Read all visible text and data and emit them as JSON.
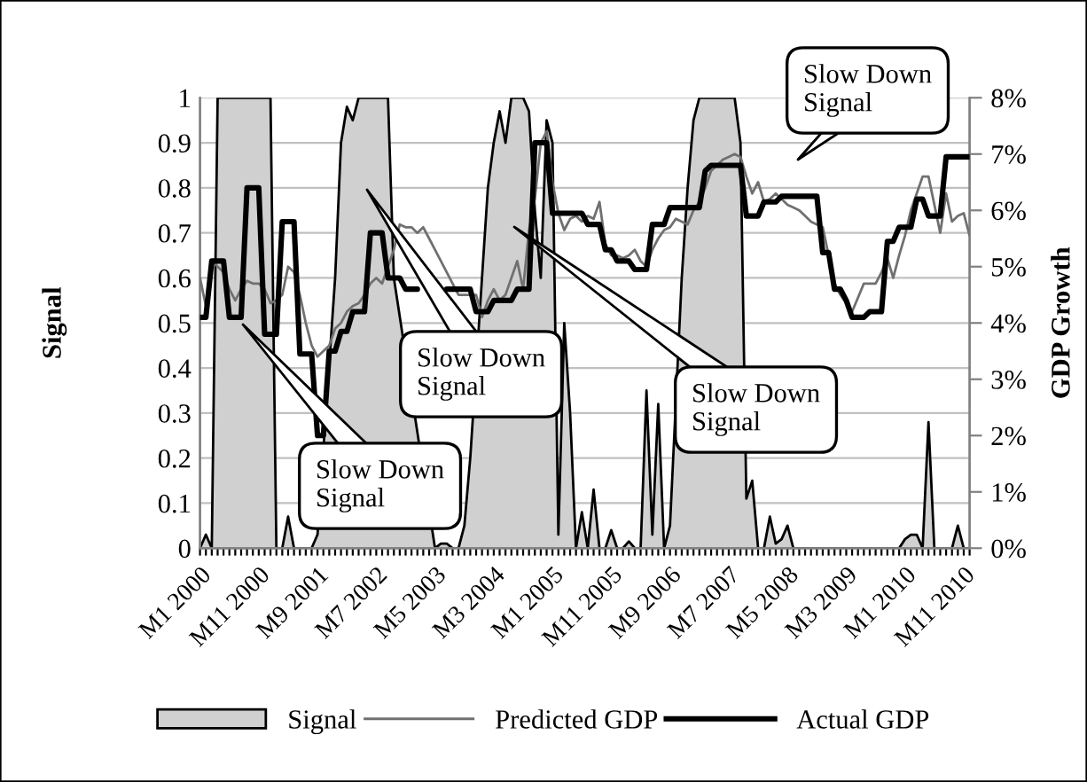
{
  "chart_data": {
    "type": "line",
    "ylabel": "Signal",
    "y2label": "GDP Growth",
    "categories": [
      "M1 2000",
      null,
      null,
      null,
      null,
      null,
      null,
      null,
      null,
      null,
      "M11 2000",
      null,
      null,
      null,
      null,
      null,
      null,
      null,
      null,
      null,
      "M9 2001",
      null,
      null,
      null,
      null,
      null,
      null,
      null,
      null,
      null,
      "M7 2002",
      null,
      null,
      null,
      null,
      null,
      null,
      null,
      null,
      null,
      "M5 2003",
      null,
      null,
      null,
      null,
      null,
      null,
      null,
      null,
      null,
      "M3 2004",
      null,
      null,
      null,
      null,
      null,
      null,
      null,
      null,
      null,
      "M1 2005",
      null,
      null,
      null,
      null,
      null,
      null,
      null,
      null,
      null,
      "M11 2005",
      null,
      null,
      null,
      null,
      null,
      null,
      null,
      null,
      null,
      "M9 2006",
      null,
      null,
      null,
      null,
      null,
      null,
      null,
      null,
      null,
      "M7 2007",
      null,
      null,
      null,
      null,
      null,
      null,
      null,
      null,
      null,
      "M5 2008",
      null,
      null,
      null,
      null,
      null,
      null,
      null,
      null,
      null,
      "M3 2009",
      null,
      null,
      null,
      null,
      null,
      null,
      null,
      null,
      null,
      "M1 2010",
      null,
      null,
      null,
      null,
      null,
      null,
      null,
      null,
      null,
      "M11 2010",
      null
    ],
    "series": [
      {
        "name": "Signal",
        "type": "area",
        "color": "#d0d0d0",
        "values": [
          0,
          0.03,
          0,
          1,
          1,
          1,
          1,
          1,
          1,
          1,
          1,
          1,
          1,
          0,
          0,
          0.07,
          0,
          0,
          0,
          0,
          0.03,
          null,
          null,
          0.6,
          0.9,
          0.98,
          0.95,
          1,
          1,
          1,
          1,
          1,
          1,
          0.6,
          null,
          null,
          null,
          null,
          null,
          null,
          0,
          0.01,
          0.01,
          0,
          0,
          0.05,
          0.2,
          null,
          0.6,
          0.8,
          0.9,
          0.97,
          0.9,
          1,
          1,
          1,
          0.97,
          0.75,
          0.6,
          0.95,
          0.9,
          0.03,
          0.5,
          0.3,
          0,
          0.08,
          0,
          0.13,
          0,
          0,
          0.04,
          0,
          0,
          0.015,
          0,
          0,
          0.35,
          0.03,
          0.32,
          0,
          0.05,
          null,
          0.6,
          0.8,
          0.95,
          1,
          1,
          1,
          1,
          1,
          1,
          1,
          0.9,
          0.11,
          0.15,
          0,
          0,
          0.07,
          0.01,
          0.02,
          0.05,
          0,
          0,
          0,
          0,
          0,
          0,
          0,
          0,
          0,
          0,
          0,
          0,
          0,
          0,
          0,
          0,
          0,
          0,
          0,
          0.02,
          0.03,
          0.03,
          0,
          0.28,
          0,
          0,
          0,
          0,
          0.05,
          0,
          0
        ]
      },
      {
        "name": "Predicted GDP",
        "axis": "y2",
        "color": "#707070",
        "values": [
          4.8,
          4.3,
          5.1,
          5.0,
          4.9,
          4.6,
          4.4,
          4.6,
          4.75,
          4.7,
          4.7,
          4.6,
          4.35,
          4.4,
          4.5,
          5.0,
          4.9,
          4.5,
          4.0,
          3.6,
          3.4,
          3.5,
          3.6,
          3.9,
          4.0,
          4.2,
          4.3,
          4.35,
          4.5,
          4.7,
          4.8,
          4.7,
          5.0,
          5.3,
          5.75,
          5.7,
          5.7,
          5.6,
          5.7,
          5.5,
          5.3,
          5.1,
          4.9,
          4.7,
          4.5,
          4.5,
          4.5,
          4.5,
          4.1,
          4.4,
          4.6,
          4.4,
          4.5,
          4.8,
          5.1,
          4.6,
          5.65,
          6.2,
          7.2,
          7.4,
          6.5,
          5.95,
          5.65,
          5.85,
          5.9,
          5.8,
          5.9,
          5.85,
          6.15,
          5.4,
          5.2,
          5.2,
          5.15,
          5.2,
          5.3,
          5.1,
          5.0,
          5.3,
          5.5,
          5.65,
          5.7,
          5.85,
          5.8,
          5.75,
          6.0,
          6.15,
          6.4,
          6.7,
          6.8,
          6.9,
          6.95,
          7.0,
          6.95,
          6.6,
          6.3,
          6.5,
          6.15,
          6.2,
          6.3,
          6.2,
          6.1,
          6.05,
          6.0,
          5.9,
          5.8,
          5.75,
          5.7,
          5.2,
          4.7,
          4.5,
          4.35,
          4.2,
          4.45,
          4.7,
          4.7,
          4.7,
          4.9,
          5.15,
          4.8,
          5.2,
          5.55,
          6.0,
          6.3,
          6.6,
          6.6,
          6.1,
          5.6,
          6.3,
          5.8,
          5.9,
          5.95,
          5.55
        ]
      },
      {
        "name": "Actual GDP",
        "axis": "y2",
        "color": "#000000",
        "values": [
          4.1,
          4.1,
          5.1,
          5.1,
          5.1,
          4.1,
          4.1,
          4.1,
          6.4,
          6.4,
          6.4,
          3.8,
          3.8,
          3.8,
          5.8,
          5.8,
          5.8,
          3.45,
          3.45,
          3.45,
          2.0,
          2.0,
          3.5,
          3.5,
          3.85,
          3.85,
          4.2,
          4.2,
          4.2,
          5.6,
          5.6,
          5.6,
          4.8,
          4.8,
          4.8,
          4.6,
          4.6,
          4.6,
          null,
          null,
          null,
          null,
          4.6,
          4.6,
          4.6,
          4.6,
          4.6,
          4.2,
          4.2,
          4.2,
          4.4,
          4.4,
          4.4,
          4.4,
          4.6,
          4.6,
          4.6,
          7.2,
          7.2,
          7.2,
          5.95,
          5.95,
          5.95,
          5.95,
          5.95,
          5.95,
          5.75,
          5.75,
          5.75,
          5.3,
          5.3,
          5.1,
          5.1,
          5.1,
          4.95,
          4.95,
          4.95,
          5.75,
          5.75,
          5.75,
          6.05,
          6.05,
          6.05,
          6.05,
          6.05,
          6.05,
          6.7,
          6.8,
          6.8,
          6.8,
          6.8,
          6.8,
          6.8,
          5.9,
          5.9,
          5.9,
          6.15,
          6.15,
          6.15,
          6.25,
          6.25,
          6.25,
          6.25,
          6.25,
          6.25,
          6.25,
          5.25,
          5.25,
          4.6,
          4.6,
          4.4,
          4.1,
          4.1,
          4.1,
          4.2,
          4.2,
          4.2,
          5.45,
          5.45,
          5.7,
          5.7,
          5.7,
          6.2,
          6.2,
          5.9,
          5.9,
          5.9,
          6.95,
          6.95,
          6.95,
          6.95,
          6.95
        ]
      }
    ],
    "ylim": [
      0,
      1
    ],
    "yticks": [
      0,
      0.1,
      0.2,
      0.3,
      0.4,
      0.5,
      0.6,
      0.7,
      0.8,
      0.9,
      1
    ],
    "y2lim": [
      0,
      8
    ],
    "y2ticks": [
      {
        "value": 0,
        "label": "0%"
      },
      {
        "value": 1,
        "label": "1%"
      },
      {
        "value": 2,
        "label": "2%"
      },
      {
        "value": 3,
        "label": "3%"
      },
      {
        "value": 4,
        "label": "4%"
      },
      {
        "value": 5,
        "label": "5%"
      },
      {
        "value": 6,
        "label": "6%"
      },
      {
        "value": 7,
        "label": "7%"
      },
      {
        "value": 8,
        "label": "8%"
      }
    ],
    "annotations": [
      "Slow Down\nSignal",
      "Slow Down\nSignal",
      "Slow Down\nSignal",
      "Slow Down\nSignal"
    ],
    "grid": "y",
    "legend": "bottom",
    "marker": "none",
    "line_style": "solid"
  }
}
